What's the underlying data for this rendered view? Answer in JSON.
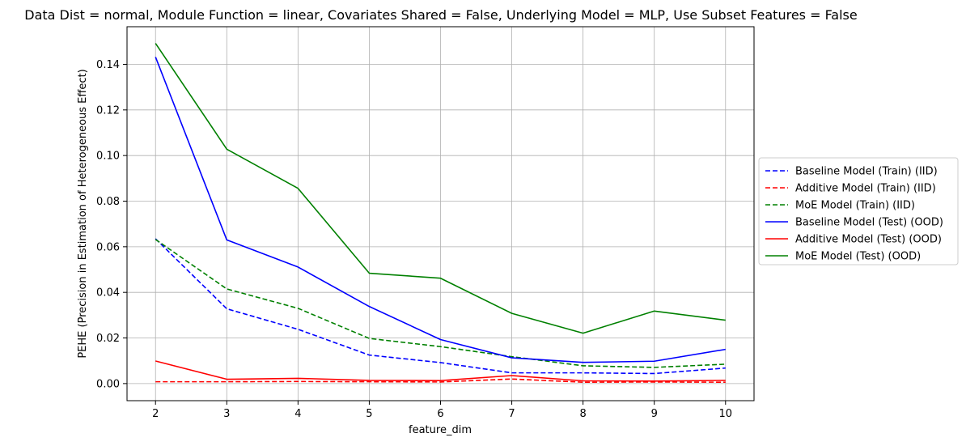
{
  "chart_data": {
    "type": "line",
    "title": "Data Dist = normal, Module Function = linear, Covariates Shared = False, Underlying Model = MLP, Use Subset Features = False",
    "xlabel": "feature_dim",
    "ylabel": "PEHE (Precision in Estimation of Heterogeneous Effect)",
    "x": [
      2,
      3,
      4,
      5,
      6,
      7,
      8,
      9,
      10
    ],
    "xlim": [
      1.6,
      10.4
    ],
    "ylim": [
      -0.0075,
      0.1565
    ],
    "xticks": [
      2,
      3,
      4,
      5,
      6,
      7,
      8,
      9,
      10
    ],
    "xtick_labels": [
      "2",
      "3",
      "4",
      "5",
      "6",
      "7",
      "8",
      "9",
      "10"
    ],
    "yticks": [
      0.0,
      0.02,
      0.04,
      0.06,
      0.08,
      0.1,
      0.12,
      0.14
    ],
    "ytick_labels": [
      "0.00",
      "0.02",
      "0.04",
      "0.06",
      "0.08",
      "0.10",
      "0.12",
      "0.14"
    ],
    "grid": true,
    "legend_position": "outside-right",
    "series": [
      {
        "name": "Baseline Model (Train) (IID)",
        "color": "#0000ff",
        "style": "dashed",
        "values": [
          0.0635,
          0.0328,
          0.0238,
          0.0125,
          0.0092,
          0.0047,
          0.0047,
          0.0044,
          0.0068
        ]
      },
      {
        "name": "Additive Model (Train) (IID)",
        "color": "#ff0000",
        "style": "dashed",
        "values": [
          0.0008,
          0.0008,
          0.0009,
          0.0008,
          0.0007,
          0.002,
          0.0006,
          0.0007,
          0.0006
        ]
      },
      {
        "name": "MoE Model (Train) (IID)",
        "color": "#008000",
        "style": "dashed",
        "values": [
          0.0632,
          0.0415,
          0.033,
          0.0198,
          0.0162,
          0.0118,
          0.0078,
          0.0071,
          0.0085
        ]
      },
      {
        "name": "Baseline Model (Test) (OOD)",
        "color": "#0000ff",
        "style": "solid",
        "values": [
          0.1432,
          0.063,
          0.0511,
          0.0338,
          0.0193,
          0.0113,
          0.0093,
          0.0098,
          0.015
        ]
      },
      {
        "name": "Additive Model (Test) (OOD)",
        "color": "#ff0000",
        "style": "solid",
        "values": [
          0.0099,
          0.0019,
          0.0023,
          0.0014,
          0.0013,
          0.0035,
          0.0012,
          0.0011,
          0.0014
        ]
      },
      {
        "name": "MoE Model (Test) (OOD)",
        "color": "#008000",
        "style": "solid",
        "values": [
          0.1492,
          0.1028,
          0.0856,
          0.0484,
          0.0462,
          0.0308,
          0.0221,
          0.0318,
          0.0278
        ]
      }
    ]
  }
}
